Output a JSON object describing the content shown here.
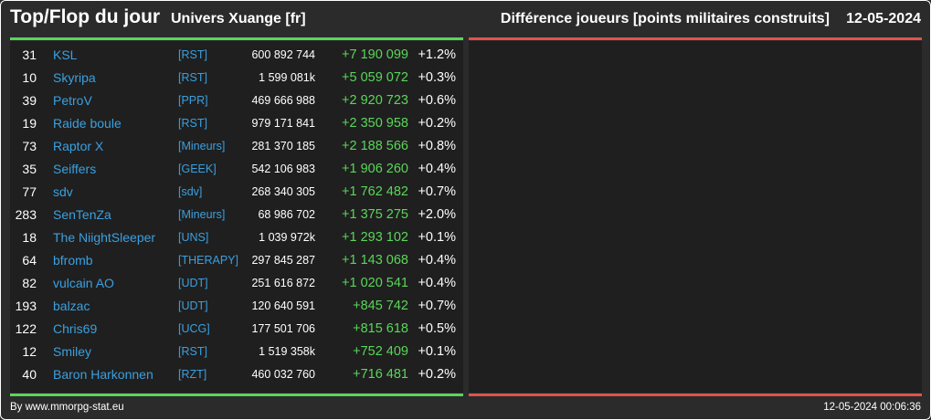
{
  "header": {
    "title": "Top/Flop du jour",
    "universe": "Univers Xuange [fr]",
    "metric": "Différence joueurs [points militaires construits]",
    "date": "12-05-2024"
  },
  "colors": {
    "positive": "#5ad65a",
    "negative": "#e0534d",
    "link": "#3aa0e0",
    "background": "#2b2b2b"
  },
  "top_rows": [
    {
      "rank": "31",
      "name": "KSL",
      "alliance": "[RST]",
      "points": "600 892 744",
      "diff": "+7 190 099",
      "pct": "+1.2%"
    },
    {
      "rank": "10",
      "name": "Skyripa",
      "alliance": "[RST]",
      "points": "1 599 081k",
      "diff": "+5 059 072",
      "pct": "+0.3%"
    },
    {
      "rank": "39",
      "name": "PetroV",
      "alliance": "[PPR]",
      "points": "469 666 988",
      "diff": "+2 920 723",
      "pct": "+0.6%"
    },
    {
      "rank": "19",
      "name": "Raide boule",
      "alliance": "[RST]",
      "points": "979 171 841",
      "diff": "+2 350 958",
      "pct": "+0.2%"
    },
    {
      "rank": "73",
      "name": "Raptor X",
      "alliance": "[Mineurs]",
      "points": "281 370 185",
      "diff": "+2 188 566",
      "pct": "+0.8%"
    },
    {
      "rank": "35",
      "name": "Seiffers",
      "alliance": "[GEEK]",
      "points": "542 106 983",
      "diff": "+1 906 260",
      "pct": "+0.4%"
    },
    {
      "rank": "77",
      "name": "sdv",
      "alliance": "[sdv]",
      "points": "268 340 305",
      "diff": "+1 762 482",
      "pct": "+0.7%"
    },
    {
      "rank": "283",
      "name": "SenTenZa",
      "alliance": "[Mineurs]",
      "points": "68 986 702",
      "diff": "+1 375 275",
      "pct": "+2.0%"
    },
    {
      "rank": "18",
      "name": "The NiightSleeper",
      "alliance": "[UNS]",
      "points": "1 039 972k",
      "diff": "+1 293 102",
      "pct": "+0.1%"
    },
    {
      "rank": "64",
      "name": "bfromb",
      "alliance": "[THERAPY]",
      "points": "297 845 287",
      "diff": "+1 143 068",
      "pct": "+0.4%"
    },
    {
      "rank": "82",
      "name": "vulcain AO",
      "alliance": "[UDT]",
      "points": "251 616 872",
      "diff": "+1 020 541",
      "pct": "+0.4%"
    },
    {
      "rank": "193",
      "name": "balzac",
      "alliance": "[UDT]",
      "points": "120 640 591",
      "diff": "+845 742",
      "pct": "+0.7%"
    },
    {
      "rank": "122",
      "name": "Chris69",
      "alliance": "[UCG]",
      "points": "177 501 706",
      "diff": "+815 618",
      "pct": "+0.5%"
    },
    {
      "rank": "12",
      "name": "Smiley",
      "alliance": "[RST]",
      "points": "1 519 358k",
      "diff": "+752 409",
      "pct": "+0.1%"
    },
    {
      "rank": "40",
      "name": "Baron Harkonnen",
      "alliance": "[RZT]",
      "points": "460 032 760",
      "diff": "+716 481",
      "pct": "+0.2%"
    }
  ],
  "footer": {
    "source": "By www.mmorpg-stat.eu",
    "timestamp": "12-05-2024 00:06:36"
  }
}
